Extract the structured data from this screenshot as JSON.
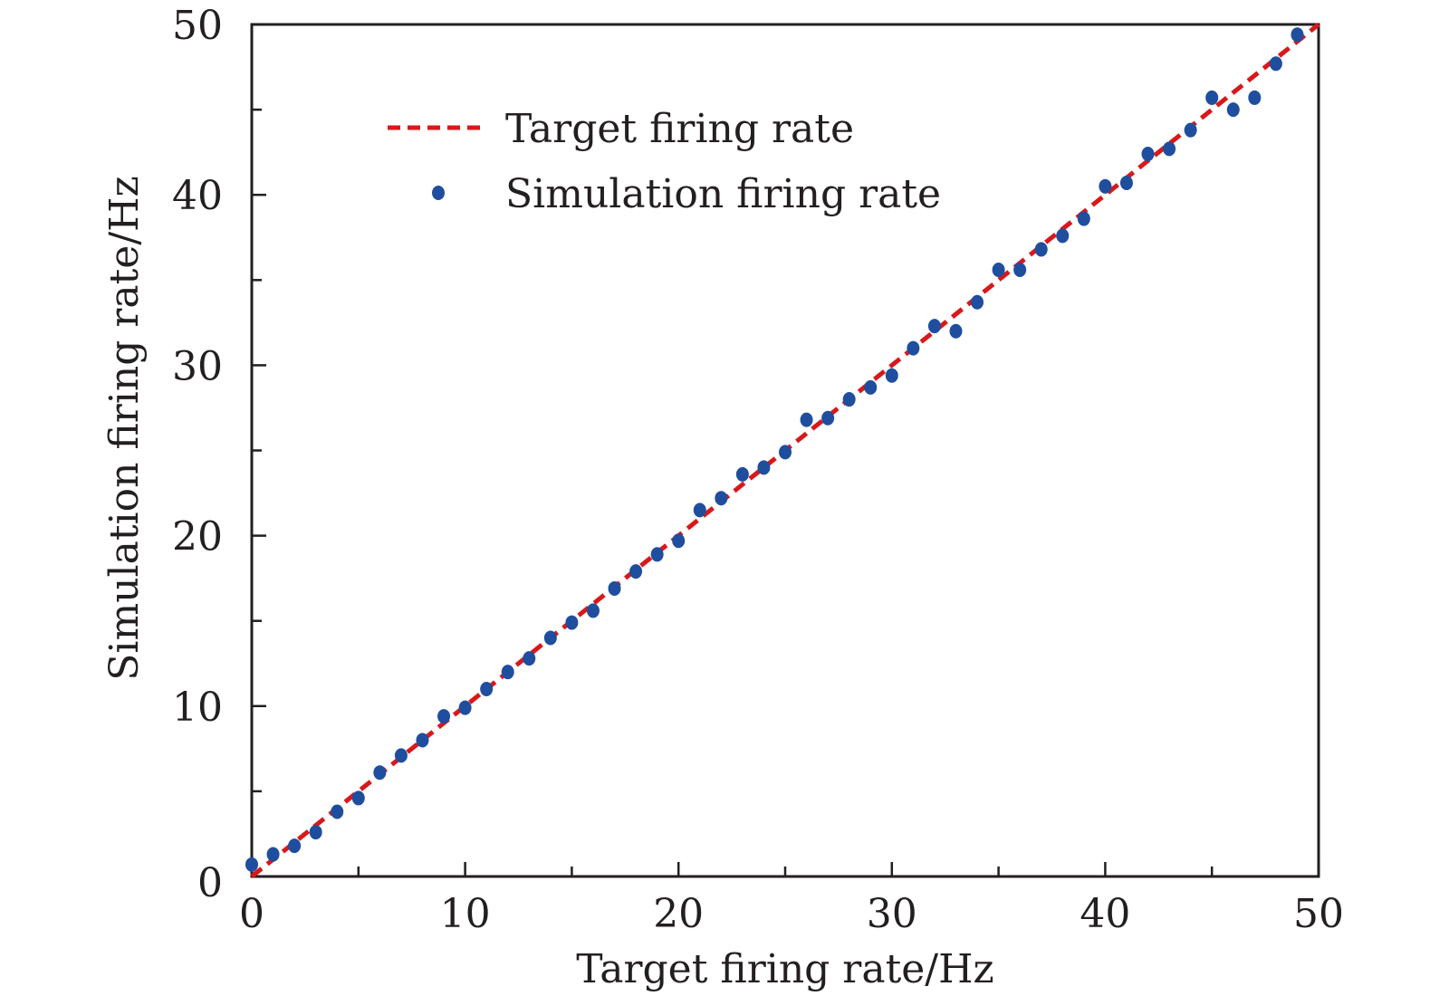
{
  "chart_data": {
    "type": "scatter",
    "title": "",
    "xlabel": "Target firing rate/Hz",
    "ylabel": "Simulation firing rate/Hz",
    "xlim": [
      0,
      50
    ],
    "ylim": [
      0,
      50
    ],
    "xticks": [
      0,
      10,
      20,
      30,
      40,
      50
    ],
    "yticks": [
      0,
      10,
      20,
      30,
      40,
      50
    ],
    "xtick_labels": [
      "0",
      "10",
      "20",
      "30",
      "40",
      "50"
    ],
    "ytick_labels": [
      "0",
      "10",
      "20",
      "30",
      "40",
      "50"
    ],
    "minor_tick_step": 5,
    "grid": false,
    "legend_position": "upper-left",
    "series": [
      {
        "name": "Target firing rate",
        "kind": "line",
        "style": "dashed",
        "color": "#d7191c",
        "x": [
          0,
          50
        ],
        "y": [
          0,
          50
        ]
      },
      {
        "name": "Simulation firing rate",
        "kind": "scatter",
        "color": "#1f4e9e",
        "x": [
          0,
          1,
          2,
          3,
          4,
          5,
          6,
          7,
          8,
          9,
          10,
          11,
          12,
          13,
          14,
          15,
          16,
          17,
          18,
          19,
          20,
          21,
          22,
          23,
          24,
          25,
          26,
          27,
          28,
          29,
          30,
          31,
          32,
          33,
          34,
          35,
          36,
          37,
          38,
          39,
          40,
          41,
          42,
          43,
          44,
          45,
          46,
          47,
          48,
          49
        ],
        "y": [
          0.7,
          1.3,
          1.8,
          2.6,
          3.8,
          4.6,
          6.1,
          7.1,
          8.0,
          9.4,
          9.9,
          11.0,
          12.0,
          12.8,
          14.0,
          14.9,
          15.6,
          16.9,
          17.9,
          18.9,
          19.7,
          21.5,
          22.2,
          23.6,
          24.0,
          24.9,
          26.8,
          26.9,
          28.0,
          28.7,
          29.4,
          31.0,
          32.3,
          32.0,
          33.7,
          35.6,
          35.6,
          36.8,
          37.6,
          38.6,
          40.5,
          40.7,
          42.4,
          42.7,
          43.8,
          45.7,
          45.0,
          45.7,
          47.7,
          49.4
        ]
      }
    ]
  }
}
